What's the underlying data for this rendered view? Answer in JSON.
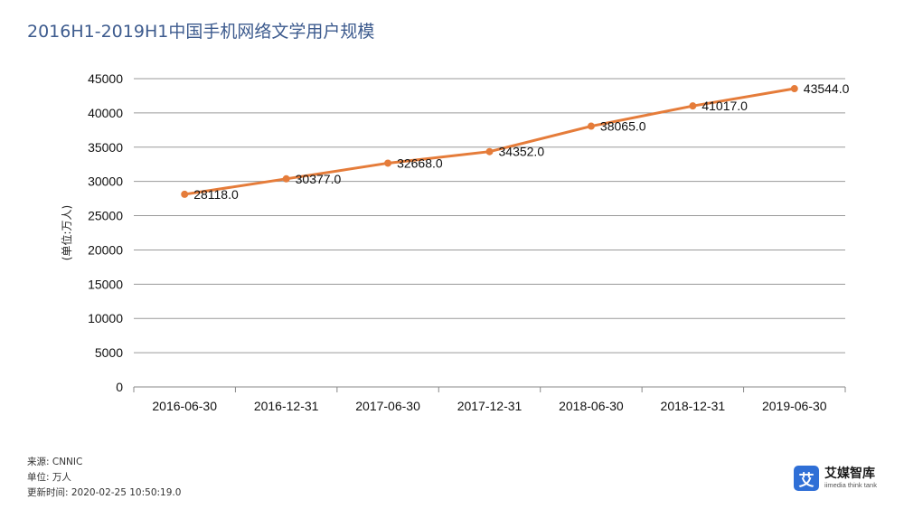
{
  "title": "2016H1-2019H1中国手机网络文学用户规模",
  "chart_data": {
    "type": "line",
    "categories": [
      "2016-06-30",
      "2016-12-31",
      "2017-06-30",
      "2017-12-31",
      "2018-06-30",
      "2018-12-31",
      "2019-06-30"
    ],
    "series": [
      {
        "values": [
          28118.0,
          30377.0,
          32668.0,
          34352.0,
          38065.0,
          41017.0,
          43544.0
        ]
      }
    ],
    "data_labels": [
      "28118.0",
      "30377.0",
      "32668.0",
      "34352.0",
      "38065.0",
      "41017.0",
      "43544.0"
    ],
    "ylabel": "(单位:万人)",
    "xlabel": "",
    "ylim": [
      0,
      45000
    ],
    "yticks": [
      0,
      5000,
      10000,
      15000,
      20000,
      25000,
      30000,
      35000,
      40000,
      45000
    ],
    "grid": true,
    "colors": {
      "line": "#e57c3a",
      "grid": "#9a9a9a",
      "axis": "#888888"
    }
  },
  "footer": {
    "source": "来源: CNNIC",
    "unit": "单位: 万人",
    "updated": "更新时间: 2020-02-25 10:50:19.0"
  },
  "brand": {
    "icon_char": "艾",
    "name": "艾媒智库",
    "subtitle": "iimedia think tank"
  }
}
